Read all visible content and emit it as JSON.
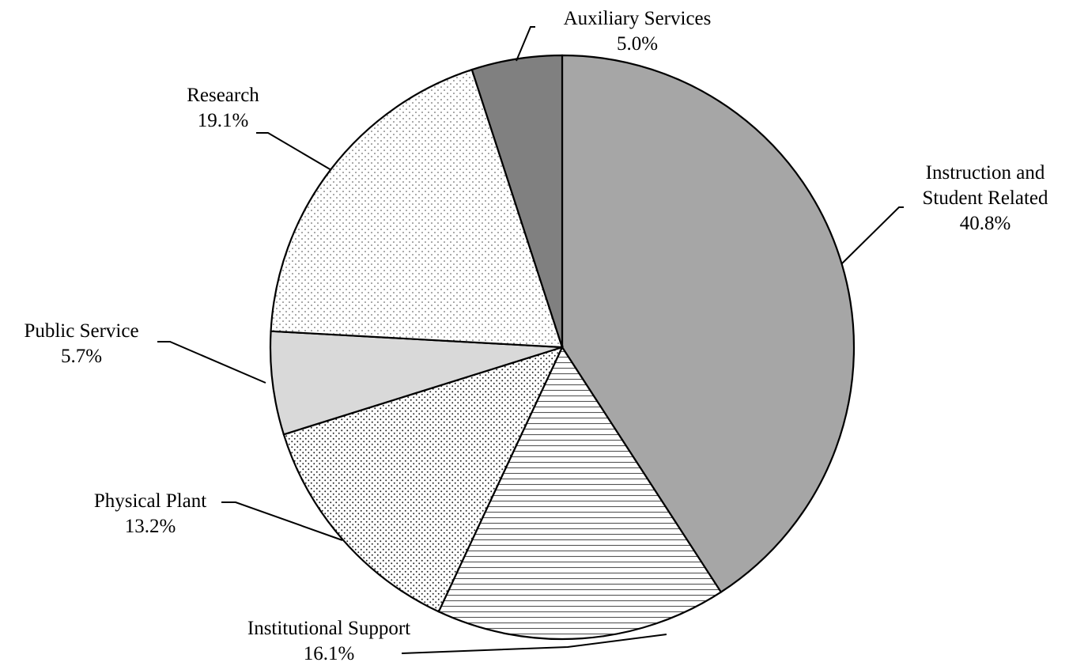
{
  "chart_data": {
    "type": "pie",
    "title": "",
    "start": "top, clockwise",
    "slices": [
      {
        "name": "Instruction and Student Related",
        "label_lines": [
          "Instruction and",
          "Student Related"
        ],
        "percent_text": "40.8%",
        "value": 40.8,
        "fill": "#a6a6a6",
        "pattern": "solid"
      },
      {
        "name": "Institutional Support",
        "label_lines": [
          "Institutional Support"
        ],
        "percent_text": "16.1%",
        "value": 16.1,
        "fill": "#ffffff",
        "pattern": "horizontal-lines"
      },
      {
        "name": "Physical Plant",
        "label_lines": [
          "Physical Plant"
        ],
        "percent_text": "13.2%",
        "value": 13.2,
        "fill": "#ffffff",
        "pattern": "dense-dots"
      },
      {
        "name": "Public Service",
        "label_lines": [
          "Public Service"
        ],
        "percent_text": "5.7%",
        "value": 5.7,
        "fill": "#d9d9d9",
        "pattern": "solid"
      },
      {
        "name": "Research",
        "label_lines": [
          "Research"
        ],
        "percent_text": "19.1%",
        "value": 19.1,
        "fill": "#ffffff",
        "pattern": "sparse-dots"
      },
      {
        "name": "Auxiliary Services",
        "label_lines": [
          "Auxiliary Services"
        ],
        "percent_text": "5.0%",
        "value": 5.0,
        "fill": "#808080",
        "pattern": "solid"
      }
    ],
    "legend": "none (leader-line labels)"
  }
}
